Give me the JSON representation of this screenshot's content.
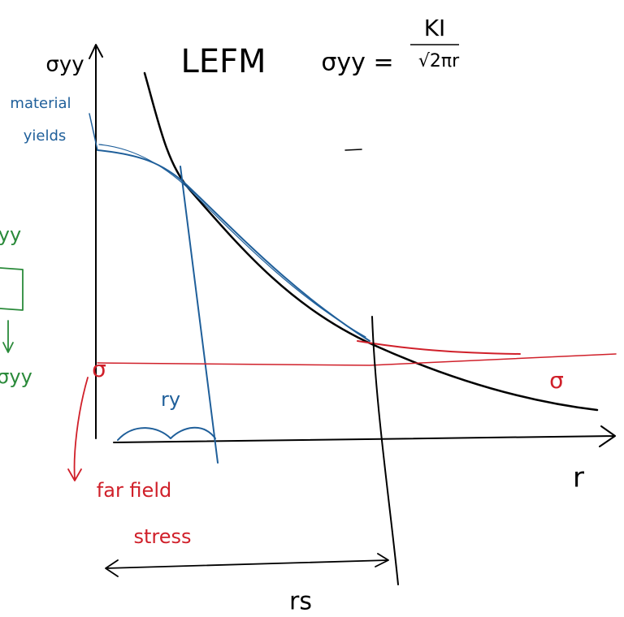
{
  "title": "LEFM",
  "formula": {
    "lhs": "σyy =",
    "numerator": "KI",
    "denominator": "√2πr"
  },
  "labels": {
    "y_axis": "σyy",
    "x_axis": "r",
    "yield_1": "material",
    "yield_2": "yields",
    "plastic_zone": "ry",
    "far_field_symbol": "σ",
    "far_field_1": "far field",
    "far_field_2": "stress",
    "size": "rs",
    "side_top": "yy",
    "side_bottom": "σyy"
  }
}
